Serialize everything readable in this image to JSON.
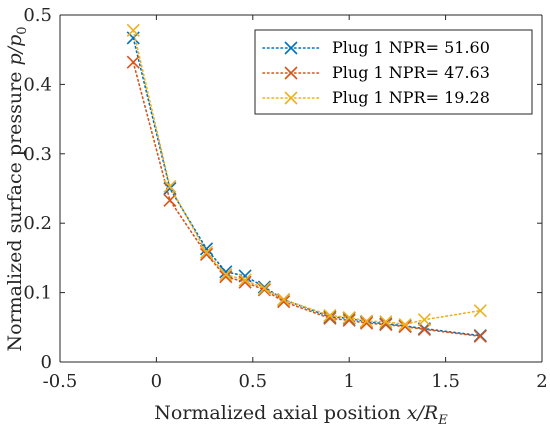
{
  "chart_data": {
    "type": "line",
    "xlabel_text": "Normalized axial position ",
    "xlabel_math": "x/R",
    "xlabel_sub": "E",
    "ylabel_text": "Normalized surface pressure ",
    "ylabel_math": "p/p",
    "ylabel_sub": "0",
    "xlim": [
      -0.5,
      2
    ],
    "ylim": [
      0,
      0.5
    ],
    "xticks": [
      -0.5,
      0,
      0.5,
      1,
      1.5,
      2
    ],
    "xtick_labels": [
      "-0.5",
      "0",
      "0.5",
      "1",
      "1.5",
      "2"
    ],
    "yticks": [
      0,
      0.1,
      0.2,
      0.3,
      0.4,
      0.5
    ],
    "ytick_labels": [
      "0",
      "0.1",
      "0.2",
      "0.3",
      "0.4",
      "0.5"
    ],
    "grid": false,
    "legend_position": "top-right",
    "series": [
      {
        "name": "Plug 1 NPR= 51.60",
        "color": "#0072BD",
        "marker": "x",
        "line_style": "dotted",
        "x": [
          -0.12,
          0.07,
          0.26,
          0.36,
          0.46,
          0.56,
          0.66,
          0.9,
          1.0,
          1.09,
          1.19,
          1.29,
          1.39,
          1.68
        ],
        "y": [
          0.467,
          0.25,
          0.163,
          0.13,
          0.124,
          0.108,
          0.09,
          0.065,
          0.063,
          0.058,
          0.055,
          0.052,
          0.048,
          0.038
        ]
      },
      {
        "name": "Plug 1 NPR= 47.63",
        "color": "#D95319",
        "marker": "x",
        "line_style": "dotted",
        "x": [
          -0.12,
          0.07,
          0.26,
          0.36,
          0.46,
          0.56,
          0.66,
          0.9,
          1.0,
          1.09,
          1.19,
          1.29,
          1.39,
          1.68
        ],
        "y": [
          0.432,
          0.233,
          0.155,
          0.123,
          0.115,
          0.104,
          0.087,
          0.063,
          0.06,
          0.056,
          0.054,
          0.051,
          0.047,
          0.037
        ]
      },
      {
        "name": "Plug 1 NPR= 19.28",
        "color": "#EDB120",
        "marker": "x",
        "line_style": "dotted",
        "x": [
          -0.12,
          0.07,
          0.26,
          0.36,
          0.46,
          0.56,
          0.66,
          0.9,
          1.0,
          1.09,
          1.19,
          1.29,
          1.39,
          1.68
        ],
        "y": [
          0.478,
          0.253,
          0.158,
          0.126,
          0.118,
          0.106,
          0.09,
          0.067,
          0.064,
          0.059,
          0.058,
          0.054,
          0.061,
          0.074
        ]
      }
    ]
  }
}
